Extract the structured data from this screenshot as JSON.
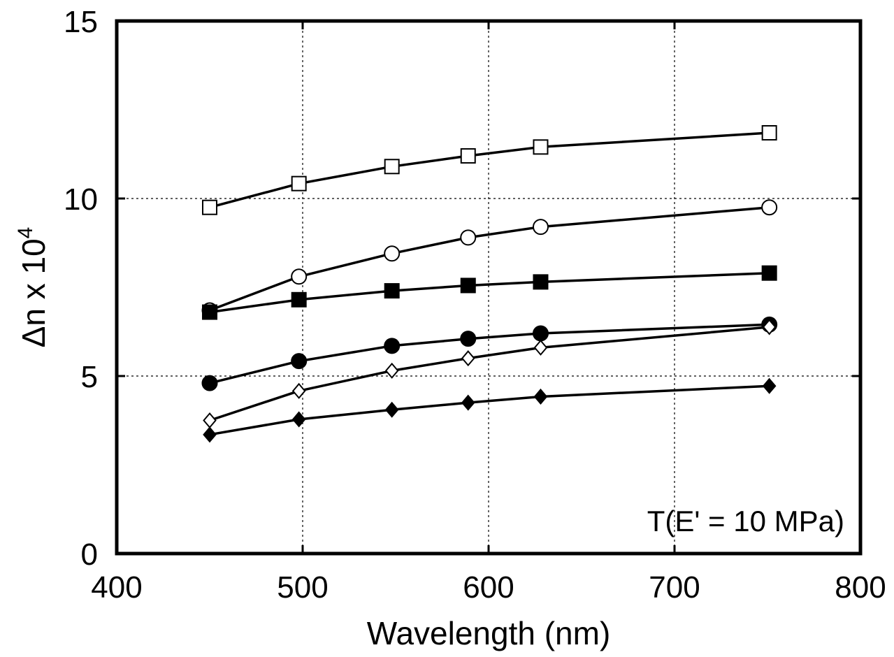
{
  "chart_data": {
    "type": "line",
    "title": "",
    "xlabel": "Wavelength (nm)",
    "ylabel_base": "Δn x 10",
    "ylabel_exp": "4",
    "xlim": [
      400,
      800
    ],
    "ylim": [
      0,
      15
    ],
    "xticks": [
      400,
      500,
      600,
      700,
      800
    ],
    "yticks": [
      0,
      5,
      10,
      15
    ],
    "xtick_labels": [
      "400",
      "500",
      "600",
      "700",
      "800"
    ],
    "ytick_labels": [
      "0",
      "5",
      "10",
      "15"
    ],
    "grid": true,
    "annotation": "T(E' = 10 MPa)",
    "annotation_placement": "bottom-right",
    "series": [
      {
        "marker": "open-square",
        "x": [
          450,
          498,
          548,
          589,
          628,
          751
        ],
        "y": [
          9.75,
          10.42,
          10.9,
          11.2,
          11.45,
          11.85
        ]
      },
      {
        "marker": "open-circle",
        "x": [
          450,
          498,
          548,
          589,
          628,
          751
        ],
        "y": [
          6.85,
          7.8,
          8.45,
          8.9,
          9.2,
          9.75
        ]
      },
      {
        "marker": "filled-square",
        "x": [
          450,
          498,
          548,
          589,
          628,
          751
        ],
        "y": [
          6.8,
          7.15,
          7.4,
          7.55,
          7.65,
          7.9
        ]
      },
      {
        "marker": "filled-circle",
        "x": [
          450,
          498,
          548,
          589,
          628,
          751
        ],
        "y": [
          4.8,
          5.42,
          5.85,
          6.05,
          6.2,
          6.45
        ]
      },
      {
        "marker": "open-diamond",
        "x": [
          450,
          498,
          548,
          589,
          628,
          751
        ],
        "y": [
          3.75,
          4.58,
          5.15,
          5.5,
          5.8,
          6.38
        ]
      },
      {
        "marker": "filled-diamond",
        "x": [
          450,
          498,
          548,
          589,
          628,
          751
        ],
        "y": [
          3.35,
          3.78,
          4.05,
          4.25,
          4.42,
          4.72
        ]
      }
    ]
  }
}
